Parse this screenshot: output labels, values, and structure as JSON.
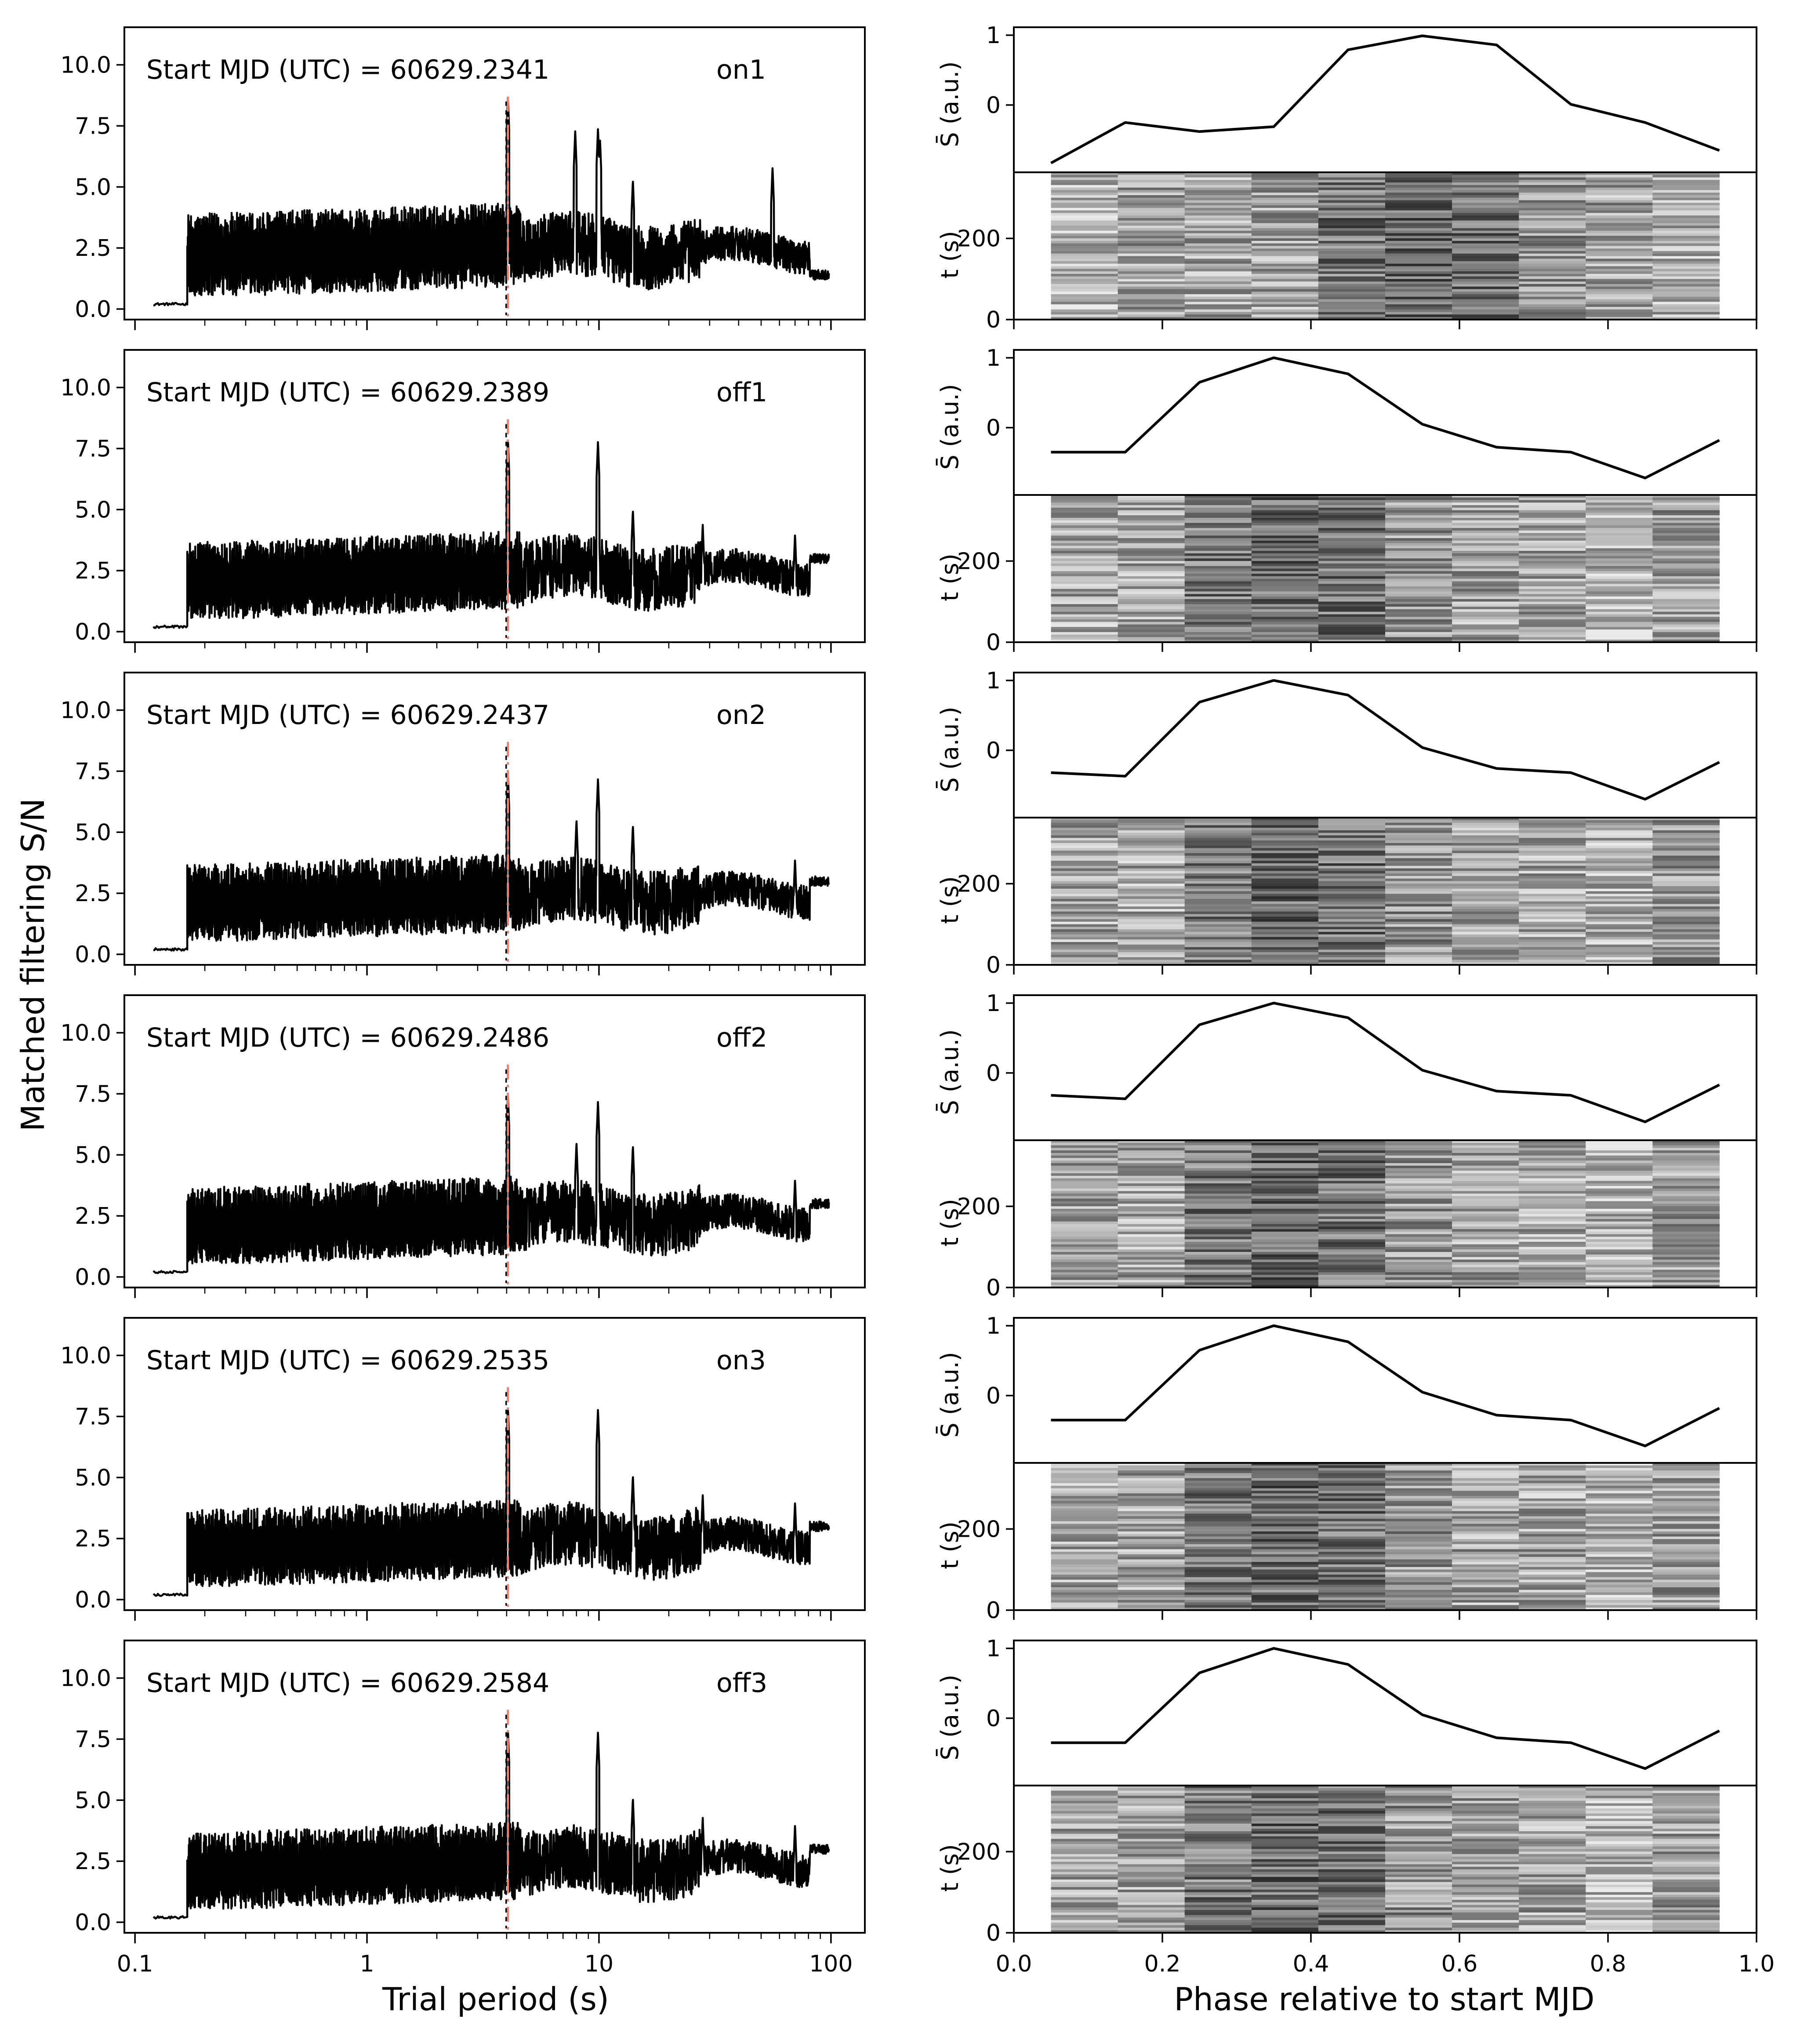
{
  "figure": {
    "left_xlabel": "Trial period (s)",
    "left_ylabel": "Matched filtering S/N",
    "right_xlabel": "Phase relative to start MJD",
    "profile_ylabel": "S̄ (a.u.)",
    "time_ylabel": "t (s)"
  },
  "chart_data": [
    {
      "type": "line",
      "panel": "periodogram",
      "x_scale": "log",
      "xlim": [
        0.09,
        140
      ],
      "ylim": [
        0,
        11
      ],
      "x_ticks": [
        0.1,
        1,
        10,
        100
      ],
      "x_tick_labels": [
        "0.1",
        "1",
        "10",
        "100"
      ],
      "y_ticks": [
        0,
        2.5,
        5,
        7.5,
        10
      ],
      "y_tick_labels": [
        "0.0",
        "2.5",
        "5.0",
        "7.5",
        "10.0"
      ],
      "reference_period": 4.05,
      "rows": [
        {
          "start_label": "Start MJD (UTC) = 60629.2341",
          "tag": "on1",
          "base_level": 2.0,
          "noise_amp": 1.4,
          "peaks": [
            [
              4.05,
              8.7
            ],
            [
              7.9,
              7.3
            ],
            [
              9.9,
              7.4
            ],
            [
              10.1,
              7.0
            ],
            [
              14.0,
              5.3
            ],
            [
              56.0,
              5.8
            ],
            [
              82.0,
              3.4
            ]
          ]
        },
        {
          "start_label": "Start MJD (UTC) = 60629.2389",
          "tag": "off1",
          "base_level": 1.9,
          "noise_amp": 1.3,
          "peaks": [
            [
              4.05,
              7.9
            ],
            [
              9.9,
              7.8
            ],
            [
              14.0,
              5.0
            ],
            [
              28.0,
              4.4
            ],
            [
              70.0,
              4.0
            ]
          ]
        },
        {
          "start_label": "Start MJD (UTC) = 60629.2437",
          "tag": "on2",
          "base_level": 1.9,
          "noise_amp": 1.3,
          "peaks": [
            [
              4.05,
              7.4
            ],
            [
              9.9,
              7.2
            ],
            [
              8.0,
              5.5
            ],
            [
              14.0,
              5.3
            ],
            [
              70.0,
              3.9
            ]
          ]
        },
        {
          "start_label": "Start MJD (UTC) = 60629.2486",
          "tag": "off2",
          "base_level": 1.9,
          "noise_amp": 1.3,
          "peaks": [
            [
              4.05,
              7.5
            ],
            [
              9.9,
              7.2
            ],
            [
              8.0,
              5.5
            ],
            [
              14.0,
              5.4
            ],
            [
              70.0,
              4.0
            ]
          ]
        },
        {
          "start_label": "Start MJD (UTC) = 60629.2535",
          "tag": "on3",
          "base_level": 1.9,
          "noise_amp": 1.3,
          "peaks": [
            [
              4.05,
              7.9
            ],
            [
              9.9,
              7.8
            ],
            [
              14.0,
              5.1
            ],
            [
              28.0,
              4.3
            ],
            [
              70.0,
              4.0
            ]
          ]
        },
        {
          "start_label": "Start MJD (UTC) = 60629.2584",
          "tag": "off3",
          "base_level": 1.9,
          "noise_amp": 1.3,
          "peaks": [
            [
              4.05,
              7.9
            ],
            [
              9.9,
              7.8
            ],
            [
              14.0,
              5.1
            ],
            [
              28.0,
              4.3
            ],
            [
              70.0,
              4.0
            ]
          ]
        }
      ]
    },
    {
      "type": "line",
      "panel": "folded_profile",
      "xlim": [
        0,
        1
      ],
      "ylim": [
        -0.9,
        1.05
      ],
      "y_ticks": [
        0,
        1
      ],
      "y_tick_labels": [
        "0",
        "1"
      ],
      "x": [
        0.05,
        0.15,
        0.25,
        0.35,
        0.45,
        0.55,
        0.65,
        0.75,
        0.85,
        0.95
      ],
      "series": [
        {
          "values": [
            -0.83,
            -0.25,
            -0.38,
            -0.31,
            0.79,
            0.99,
            0.86,
            0.01,
            -0.25,
            -0.65
          ]
        },
        {
          "values": [
            -0.35,
            -0.35,
            0.65,
            1.0,
            0.77,
            0.05,
            -0.28,
            -0.35,
            -0.72,
            -0.18
          ]
        },
        {
          "values": [
            -0.32,
            -0.37,
            0.69,
            1.0,
            0.79,
            0.04,
            -0.26,
            -0.32,
            -0.7,
            -0.17
          ]
        },
        {
          "values": [
            -0.32,
            -0.37,
            0.69,
            1.0,
            0.79,
            0.04,
            -0.26,
            -0.32,
            -0.7,
            -0.17
          ]
        },
        {
          "values": [
            -0.35,
            -0.35,
            0.65,
            1.0,
            0.77,
            0.05,
            -0.28,
            -0.35,
            -0.72,
            -0.18
          ]
        },
        {
          "values": [
            -0.35,
            -0.35,
            0.65,
            1.0,
            0.77,
            0.05,
            -0.28,
            -0.35,
            -0.72,
            -0.18
          ]
        }
      ]
    },
    {
      "type": "heatmap",
      "panel": "phase_time",
      "colormap": "grayscale",
      "x_range": [
        0.05,
        0.95
      ],
      "phase_bins": 10,
      "ylim": [
        0,
        350
      ],
      "y_ticks": [
        0,
        200
      ],
      "y_tick_labels": [
        "0",
        "200"
      ],
      "x_ticks": [
        0.0,
        0.2,
        0.4,
        0.6,
        0.8,
        1.0
      ],
      "x_tick_labels": [
        "0.0",
        "0.2",
        "0.4",
        "0.6",
        "0.8",
        "1.0"
      ]
    }
  ]
}
